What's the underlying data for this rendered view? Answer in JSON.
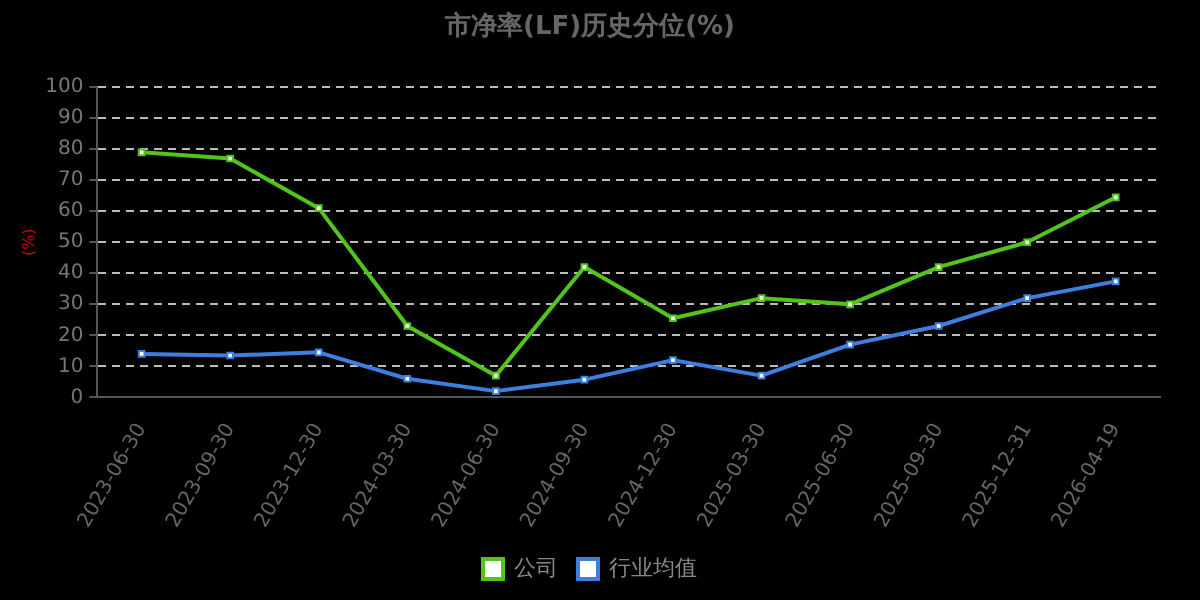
{
  "chart_data": {
    "type": "line",
    "title": "市净率(LF)历史分位(%)",
    "ylabel": "(%)",
    "categories": [
      "2023-06-30",
      "2023-09-30",
      "2023-12-30",
      "2024-03-30",
      "2024-06-30",
      "2024-09-30",
      "2024-12-30",
      "2025-03-30",
      "2025-06-30",
      "2025-09-30",
      "2025-12-31",
      "2026-04-19"
    ],
    "series": [
      {
        "name": "公司",
        "color": "#52c41a",
        "values": [
          79,
          77,
          61,
          23,
          7,
          42,
          25.5,
          32,
          30,
          42,
          50,
          64.5
        ]
      },
      {
        "name": "行业均值",
        "color": "#3d7fe0",
        "values": [
          14,
          13.5,
          14.5,
          6,
          2,
          5.7,
          12,
          7,
          17,
          23,
          32,
          37.4
        ]
      }
    ],
    "ylim": [
      0,
      100
    ],
    "yticks": [
      0,
      10,
      20,
      30,
      40,
      50,
      60,
      70,
      80,
      90,
      100
    ],
    "grid": "y",
    "legend": "bottom",
    "marker": "square",
    "line_style": "solid"
  }
}
